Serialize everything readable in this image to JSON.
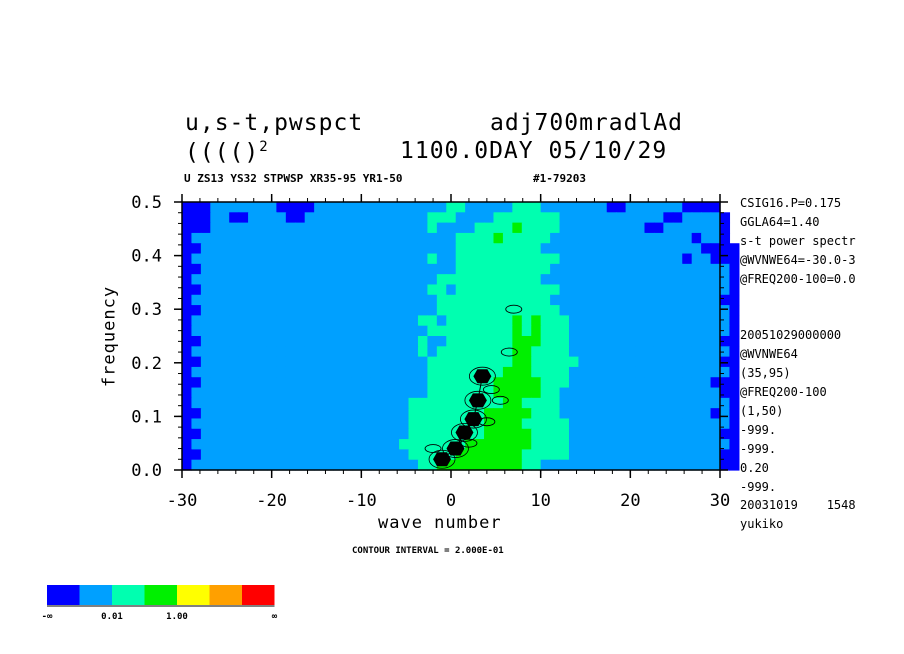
{
  "header": {
    "title_left_1": "u,s-t,pwspct",
    "title_right_1": "adj700mradlAd",
    "title_left_2": "(((()",
    "title_left_2_sup": "2",
    "title_right_2": "1100.0DAY 05/10/29",
    "subtitle_left": "U ZS13 YS32 STPWSP XR35-95 YR1-50",
    "subtitle_right": "#1-79203"
  },
  "side_info": [
    "CSIG16.P=0.175",
    "GGLA64=1.40",
    "s-t power spectr",
    "@WVNWE64=-30.0-3",
    "@FREQ200-100=0.0",
    "",
    "",
    "20051029000000",
    "@WVNWE64",
    "(35,95)",
    "@FREQ200-100",
    "(1,50)",
    "-999.",
    "-999.",
    "0.20",
    "-999.",
    "20031019    1548",
    "yukiko"
  ],
  "chart_data": {
    "type": "heatmap",
    "xlabel": "wave number",
    "ylabel": "frequency",
    "xlim": [
      -30,
      30
    ],
    "ylim": [
      0.0,
      0.5
    ],
    "x_ticks": [
      -30,
      -20,
      -10,
      0,
      10,
      20,
      30
    ],
    "y_ticks": [
      0.0,
      0.1,
      0.2,
      0.3,
      0.4,
      0.5
    ],
    "x_tick_labels": [
      "-30",
      "-20",
      "-10",
      "0",
      "10",
      "20",
      "30"
    ],
    "y_tick_labels": [
      "0.0",
      "0.1",
      "0.2",
      "0.3",
      "0.4",
      "0.5"
    ],
    "contour_interval_label": "CONTOUR INTERVAL = 2.000E-01",
    "grid_dx": 1,
    "grid_dy": 0.02,
    "rows_from_top_y05_to_y0": [
      "aaabbbbbbbaaaabbbbbbbbbbbbbbccbbbbbcccbbbbbbbaabbbbbbaaaa",
      "aaabbaabbbbaabbbbbbbbbbbbbcccbbbbcccccccbbbbbbbbbbbaabbbba",
      "aaabbbbbbbbbbbbbbbbbbbbbbbcbbbbccccdccccbbbbbbbbbaabbbbbba",
      "abbbbbbbbbbbbbbbbbbbbbbbbbbbbccccdcccccbbbbbbbbbbbbbbbabba",
      "aabbbbbbbbbbbbbbbbbbbbbbbbbbbcccccccccbbbbbbbbbbbbbbbbbaaaa",
      "abbbbbbbbbbbbbbbbbbbbbbbbbcbbcccccccccccbbbbbbbbbbbbbabbaaa",
      "aabbbbbbbbbbbbbbbbbbbbbbbbbbbccccccccccbbbbbbbbbbbbbbbbbbba",
      "abbbbbbbbbbbbbbbbbbbbbbbbbbcccccccccccbbbbbbbbbbbbbbbbbbbba",
      "aabbbbbbbbbbbbbbbbbbbbbbbbccbcccccccccccbbbbbbbbbbbbbbbbbba",
      "abbbbbbbbbbbbbbbbbbbbbbbbbbccccccccccccbbbbbbbbbbbbbbbbbbaa",
      "aabbbbbbbbbbbbbbbbbbbbbbbbbcccccccccccccbbbbbbbbbbbbbbbbbba",
      "abbbbbbbbbbbbbbbbbbbbbbbbccbcccccccdcdcccbbbbbbbbbbbbbbbbba",
      "abbbbbbbbbbbbbbbbbbbbbbbbbcccccccccdcdcccbbbbbbbbbbbbbbbbba",
      "aabbbbbbbbbbbbbbbbbbbbbbbcbbcccccccdddcccbbbbbbbbbbbbbbbbaa",
      "abbbbbbbbbbbbbbbbbbbbbbbbcbccccccccddccccbbbbbbbbbbbbbbbbba",
      "aabbbbbbbbbbbbbbbbbbbbbbbbcccccccccddcccccbbbbbbbbbbbbbbbaa",
      "abbbbbbbbbbbbbbbbbbbbbbbbbccccccccdddccccbbbbbbbbbbbbbbbbba",
      "aabbbbbbbbbbbbbbbbbbbbbbbbcccccccdddddcccbbbbbbbbbbbbbbbaaa",
      "abbbbbbbbbbbbbbbbbbbbbbbbbcccccccdddddccbbbbbbbbbbbbbbbbbaa",
      "abbbbbbbbbbbbbbbbbbbbbbbccccccccccddccccbbbbbbbbbbbbbbbbbba",
      "aabbbbbbbbbbbbbbbbbbbbbbccccccccdddddcccbbbbbbbbbbbbbbbbaba",
      "abbbbbbbbbbbbbbbbbbbbbbbccccccccddddcccccbbbbbbbbbbbbbbbbba",
      "aabbbbbbbbbbbbbbbbbbbbbbccccccccdddddccccbbbbbbbbbbbbbbbbaa",
      "abbbbbbbbbbbbbbbbbbbbbbcccccccdddddddccccbbbbbbbbbbbbbbbbba",
      "aabbbbbbbbbbbbbbbbbbbbbbcccccdddddddcccccbbbbbbbbbbbbbbbbaa",
      "abbbbbbbbbbbbbbbbbbbbbbbbccdddddddddccbbbbbbbbbbbbbbbbbbbaa"
    ],
    "dark_contour_centers": [
      [
        -1,
        0.02
      ],
      [
        0.5,
        0.04
      ],
      [
        1.5,
        0.07
      ],
      [
        2.5,
        0.095
      ],
      [
        3,
        0.13
      ],
      [
        3.5,
        0.175
      ]
    ],
    "contour_loops": [
      [
        -2,
        0.04
      ],
      [
        2,
        0.05
      ],
      [
        4,
        0.09
      ],
      [
        4.5,
        0.15
      ],
      [
        5.5,
        0.13
      ],
      [
        6.5,
        0.22
      ],
      [
        7,
        0.3
      ]
    ],
    "legend": {
      "colors": [
        "#0000ff",
        "#00a0ff",
        "#00ffb0",
        "#00f000",
        "#ffff00",
        "#ffa000",
        "#ff0000"
      ],
      "labels": [
        "-∞",
        "0.01",
        "1.00",
        "∞"
      ]
    }
  }
}
